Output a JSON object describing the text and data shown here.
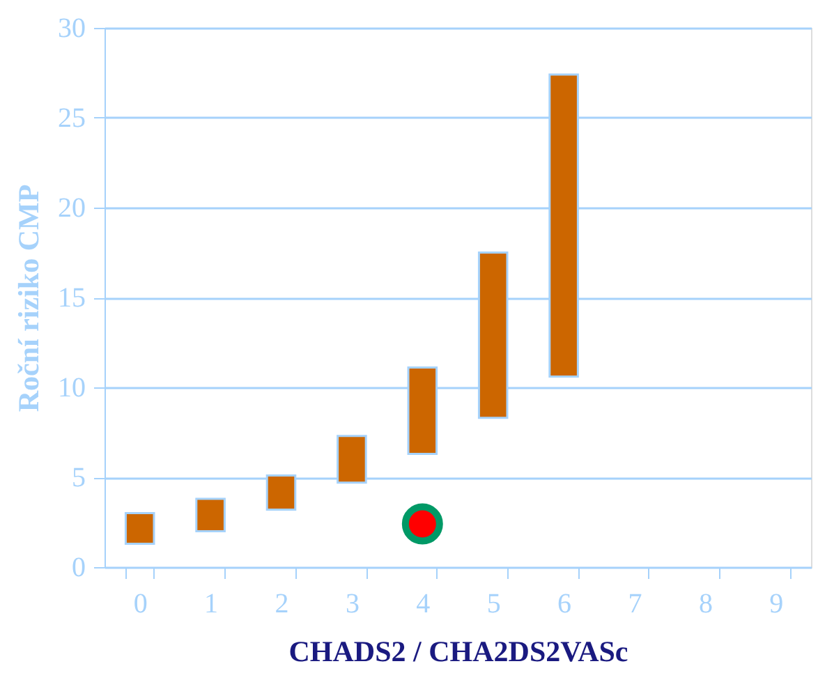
{
  "chart_data": {
    "type": "bar",
    "ylabel": "Roční riziko CMP",
    "xlabel": "CHADS2 / CHA2DS2VASc",
    "categories": [
      "0",
      "1",
      "2",
      "3",
      "4",
      "5",
      "6",
      "7",
      "8",
      "9"
    ],
    "ylim": [
      0,
      30
    ],
    "yticks": [
      0,
      5,
      10,
      15,
      20,
      25,
      30
    ],
    "grid": "y",
    "series": [
      {
        "color": "#cc6600",
        "base": [
          1.3,
          2.0,
          3.2,
          4.7,
          6.3,
          8.3,
          10.6,
          null,
          null,
          null
        ],
        "values": [
          1.7,
          1.8,
          1.9,
          2.6,
          4.8,
          9.2,
          16.8,
          null,
          null,
          null
        ]
      },
      {
        "type": "scatter",
        "color": "#ff0000",
        "marker": "circle",
        "x": [
          "4"
        ],
        "values": [
          2.4
        ]
      }
    ]
  }
}
